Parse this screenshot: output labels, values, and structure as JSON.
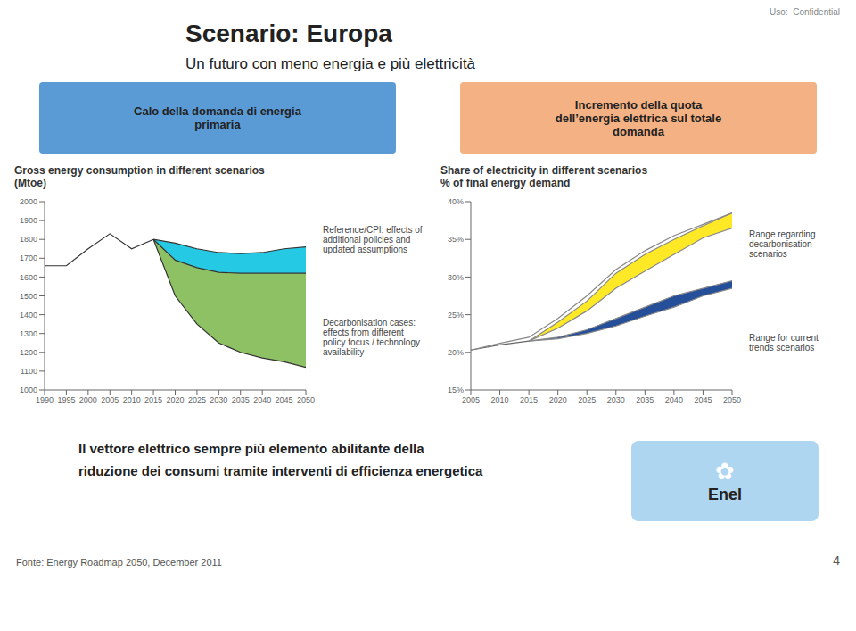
{
  "title": "Scenario: Europa",
  "subtitle": "Un futuro con meno energia e più elettricità",
  "header_note": "Uso:  Confidential",
  "boxes": [
    {
      "text": "Calo della domanda di energia\nprimaria",
      "color": "#5B9BD5"
    },
    {
      "text": "Incremento della quota\ndell’energia elettrica sul totale\ndomanda",
      "color": "#F4B183"
    }
  ],
  "chart_data": [
    {
      "type": "area",
      "title": "Gross energy consumption in different scenarios\n(Mtoe)",
      "xlim": [
        1990,
        2050
      ],
      "xticks": [
        1990,
        1995,
        2000,
        2005,
        2010,
        2015,
        2020,
        2025,
        2030,
        2035,
        2040,
        2045,
        2050
      ],
      "ylim": [
        1000,
        2000
      ],
      "yticks": [
        1000,
        1100,
        1200,
        1300,
        1400,
        1500,
        1600,
        1700,
        1800,
        1900,
        2000
      ],
      "grid": false,
      "series": [
        {
          "type": "range",
          "color": "#00BFDF",
          "x": [
            2015,
            2020,
            2025,
            2030,
            2035,
            2040,
            2045,
            2050
          ],
          "lower": [
            1800,
            1690,
            1650,
            1625,
            1620,
            1620,
            1620,
            1620
          ],
          "upper": [
            1800,
            1780,
            1750,
            1730,
            1725,
            1730,
            1750,
            1760
          ]
        },
        {
          "type": "range",
          "color": "#7AB648",
          "x": [
            2015,
            2020,
            2025,
            2030,
            2035,
            2040,
            2045,
            2050
          ],
          "lower": [
            1800,
            1500,
            1350,
            1250,
            1200,
            1170,
            1150,
            1120
          ],
          "upper": [
            1800,
            1690,
            1650,
            1625,
            1620,
            1620,
            1620,
            1620
          ]
        },
        {
          "type": "line",
          "color": "#333333",
          "x": [
            1990,
            1995,
            2000,
            2005,
            2010,
            2015
          ],
          "values": [
            1660,
            1660,
            1750,
            1830,
            1750,
            1800
          ]
        },
        {
          "type": "line",
          "color": "#333333",
          "x": [
            2015,
            2020,
            2025,
            2030,
            2035,
            2040,
            2045,
            2050
          ],
          "values": [
            1800,
            1780,
            1750,
            1730,
            1725,
            1730,
            1750,
            1760
          ]
        },
        {
          "type": "line",
          "color": "#333333",
          "x": [
            2015,
            2020,
            2025,
            2030,
            2035,
            2040,
            2045,
            2050
          ],
          "values": [
            1800,
            1690,
            1650,
            1625,
            1620,
            1620,
            1620,
            1620
          ]
        },
        {
          "type": "line",
          "color": "#333333",
          "x": [
            2015,
            2020,
            2025,
            2030,
            2035,
            2040,
            2045,
            2050
          ],
          "values": [
            1800,
            1500,
            1350,
            1250,
            1200,
            1170,
            1150,
            1120
          ]
        }
      ],
      "annotations": [
        "Reference/CPI: effects of\nadditional policies and\nupdated assumptions",
        "Decarbonisation cases:\neffects from different\npolicy focus / technology\navailability"
      ]
    },
    {
      "type": "area",
      "title": "Share of electricity in different scenarios\n% of final energy demand",
      "xlim": [
        2005,
        2050
      ],
      "xticks": [
        2005,
        2010,
        2015,
        2020,
        2025,
        2030,
        2035,
        2040,
        2045,
        2050
      ],
      "ylim": [
        15,
        40
      ],
      "yticks": [
        {
          "value": 15,
          "label": "15%"
        },
        {
          "value": 20,
          "label": "20%"
        },
        {
          "value": 25,
          "label": "25%"
        },
        {
          "value": 30,
          "label": "30%"
        },
        {
          "value": 35,
          "label": "35%"
        },
        {
          "value": 40,
          "label": "40%"
        }
      ],
      "grid": false,
      "series": [
        {
          "type": "range",
          "color": "#FFE500",
          "x": [
            2015,
            2020,
            2025,
            2030,
            2035,
            2040,
            2045,
            2050
          ],
          "lower": [
            21.5,
            23.2,
            25.5,
            28.5,
            30.8,
            33.0,
            35.2,
            36.5
          ],
          "upper": [
            21.5,
            24.0,
            26.8,
            30.5,
            33.0,
            35.0,
            36.8,
            38.5
          ]
        },
        {
          "type": "range",
          "color": "#003087",
          "x": [
            2015,
            2020,
            2025,
            2030,
            2035,
            2040,
            2045,
            2050
          ],
          "lower": [
            21.5,
            21.8,
            22.5,
            23.5,
            24.8,
            26.0,
            27.5,
            28.5
          ],
          "upper": [
            21.5,
            22.0,
            23.0,
            24.5,
            26.0,
            27.5,
            28.5,
            29.5
          ]
        },
        {
          "type": "line",
          "color": "#666666",
          "x": [
            2005,
            2010,
            2015
          ],
          "values": [
            20.3,
            21.0,
            21.5
          ]
        },
        {
          "type": "line",
          "color": "#888888",
          "x": [
            2005,
            2010,
            2015,
            2020,
            2025,
            2030,
            2035,
            2040,
            2045,
            2050
          ],
          "values": [
            20.3,
            21.2,
            22.0,
            24.5,
            27.5,
            31.0,
            33.5,
            35.5,
            37.0,
            38.5
          ]
        },
        {
          "type": "line",
          "color": "#888888",
          "x": [
            2015,
            2020,
            2025,
            2030,
            2035,
            2040,
            2045,
            2050
          ],
          "values": [
            21.5,
            24.0,
            26.8,
            30.5,
            33.0,
            35.0,
            36.8,
            38.5
          ]
        },
        {
          "type": "line",
          "color": "#888888",
          "x": [
            2015,
            2020,
            2025,
            2030,
            2035,
            2040,
            2045,
            2050
          ],
          "values": [
            21.5,
            23.2,
            25.5,
            28.5,
            30.8,
            33.0,
            35.2,
            36.5
          ]
        },
        {
          "type": "line",
          "color": "#888888",
          "x": [
            2015,
            2020,
            2025,
            2030,
            2035,
            2040,
            2045,
            2050
          ],
          "values": [
            21.5,
            22.0,
            23.0,
            24.5,
            26.0,
            27.5,
            28.5,
            29.5
          ]
        },
        {
          "type": "line",
          "color": "#888888",
          "x": [
            2015,
            2020,
            2025,
            2030,
            2035,
            2040,
            2045,
            2050
          ],
          "values": [
            21.5,
            21.8,
            22.5,
            23.5,
            24.8,
            26.0,
            27.5,
            28.5
          ]
        }
      ],
      "annotations": [
        "Range regarding\ndecarbonisation\nscenarios",
        "Range for current\ntrends scenarios"
      ]
    }
  ],
  "bottom_texts": [
    "Il vettore elettrico sempre più elemento abilitante della",
    "riduzione dei consumi tramite interventi di efficienza energetica"
  ],
  "logo": {
    "text": "Enel",
    "icon": "✿",
    "color": "#AED6F1"
  },
  "footer": "Fonte: Energy Roadmap 2050, December 2011",
  "page_number": "4"
}
